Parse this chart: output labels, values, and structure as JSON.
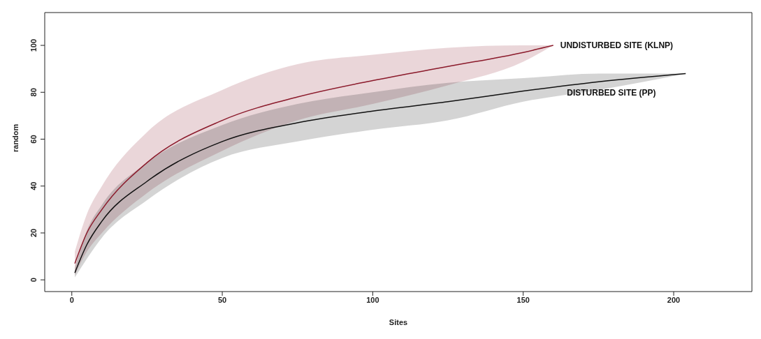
{
  "chart_data": {
    "type": "line",
    "xlabel": "Sites",
    "ylabel": "random",
    "xlim": [
      -9,
      226
    ],
    "ylim": [
      -5,
      114
    ],
    "xticks": [
      0,
      50,
      100,
      150,
      200
    ],
    "yticks": [
      0,
      20,
      40,
      60,
      80,
      100
    ],
    "series": [
      {
        "name": "UNDISTURBED SITE (KLNP)",
        "color": "#8b1a2b",
        "x": [
          1,
          5,
          10,
          25,
          50,
          75,
          100,
          125,
          150,
          160
        ],
        "values": [
          7,
          20,
          30,
          50,
          68,
          78,
          85,
          91,
          97,
          100
        ],
        "lower": [
          2,
          12,
          20,
          37,
          55,
          68,
          75,
          83,
          93,
          100
        ],
        "upper": [
          12,
          28,
          40,
          63,
          81,
          92,
          96,
          99,
          100,
          100
        ]
      },
      {
        "name": "DISTURBED SITE (PP)",
        "color": "#111111",
        "x": [
          1,
          5,
          10,
          25,
          50,
          75,
          100,
          125,
          150,
          175,
          204
        ],
        "values": [
          3,
          15,
          25,
          42,
          59,
          67,
          72,
          76,
          80.5,
          84.5,
          88
        ],
        "lower": [
          1,
          9,
          18,
          34,
          52,
          59,
          64,
          68,
          76,
          81,
          88
        ],
        "upper": [
          5,
          21,
          32,
          50,
          66,
          75,
          80,
          84,
          86,
          88,
          88
        ]
      }
    ]
  }
}
